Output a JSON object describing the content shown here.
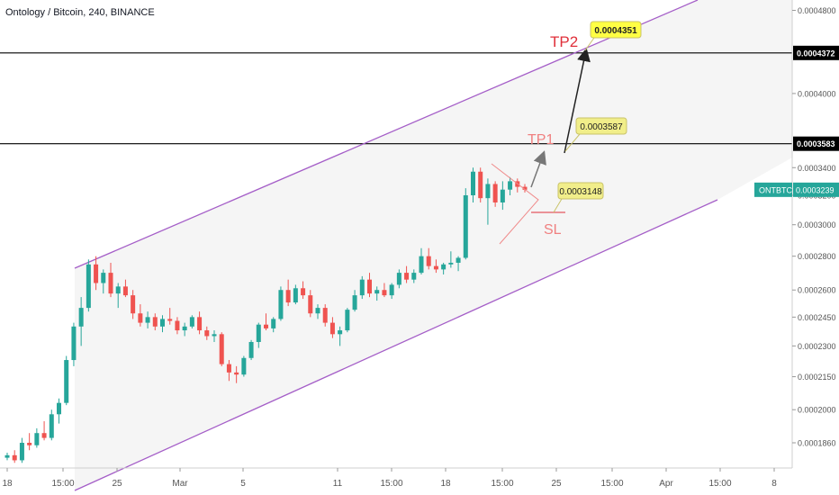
{
  "header": {
    "title": "Ontology / Bitcoin, 240, BINANCE"
  },
  "colors": {
    "up": "#26a69a",
    "down": "#ef5350",
    "channel": "#a55fc8",
    "channel_fill": "#f5f5f5",
    "triangle": "#f08a8a",
    "label_red": "#e0303a",
    "callout_fill": "#f1ee8a",
    "callout_fill_tp2": "#ffff44",
    "price_tag": "#26a69a",
    "axis_text": "#555555",
    "level_line": "#000000"
  },
  "chart_data": {
    "type": "candlestick",
    "symbol_tag": "ONTBTC",
    "current_price": "0.0003239",
    "y_scale": "log",
    "ylim": [
      0.000176,
      0.000491
    ],
    "y_ticks": [
      "0.0004800",
      "0.0004000",
      "0.0003400",
      "0.0003200",
      "0.0003000",
      "0.0002800",
      "0.0002600",
      "0.0002450",
      "0.0002300",
      "0.0002150",
      "0.0002000",
      "0.0001860"
    ],
    "x_ticks": [
      "18",
      "15:00",
      "25",
      "Mar",
      "5",
      "11",
      "15:00",
      "18",
      "15:00",
      "25",
      "15:00",
      "Apr",
      "15:00",
      "8"
    ],
    "levels": [
      "0.0004372",
      "0.0003583"
    ],
    "annotations": {
      "tp1": "TP1",
      "tp2": "TP2",
      "sl": "SL",
      "tp1_price": "0.0003587",
      "tp2_price": "0.0004351",
      "sl_price": "0.0003148"
    },
    "candles": [
      [
        0.00018,
        0.000182,
        0.000179,
        0.000181
      ],
      [
        0.000181,
        0.000183,
        0.000178,
        0.000179
      ],
      [
        0.000179,
        0.000188,
        0.000178,
        0.000186
      ],
      [
        0.000186,
        0.00019,
        0.000183,
        0.000185
      ],
      [
        0.000185,
        0.000192,
        0.000184,
        0.00019
      ],
      [
        0.00019,
        0.000195,
        0.000187,
        0.000188
      ],
      [
        0.000188,
        0.0002,
        0.000187,
        0.000198
      ],
      [
        0.000198,
        0.000205,
        0.000194,
        0.000203
      ],
      [
        0.000203,
        0.000225,
        0.000202,
        0.000223
      ],
      [
        0.000223,
        0.000242,
        0.00022,
        0.00024
      ],
      [
        0.00024,
        0.000256,
        0.00023,
        0.00025
      ],
      [
        0.00025,
        0.000278,
        0.000248,
        0.000275
      ],
      [
        0.000275,
        0.00028,
        0.00026,
        0.000264
      ],
      [
        0.000264,
        0.000272,
        0.000258,
        0.00027
      ],
      [
        0.00027,
        0.000276,
        0.000256,
        0.000258
      ],
      [
        0.000258,
        0.000264,
        0.00025,
        0.000262
      ],
      [
        0.000262,
        0.000266,
        0.000256,
        0.000257
      ],
      [
        0.000257,
        0.00026,
        0.000244,
        0.000247
      ],
      [
        0.000247,
        0.000252,
        0.00024,
        0.000242
      ],
      [
        0.000242,
        0.000248,
        0.000239,
        0.000245
      ],
      [
        0.000245,
        0.000247,
        0.000238,
        0.00024
      ],
      [
        0.00024,
        0.000246,
        0.000237,
        0.000244
      ],
      [
        0.000244,
        0.00025,
        0.000241,
        0.000243
      ],
      [
        0.000243,
        0.000245,
        0.000236,
        0.000238
      ],
      [
        0.000238,
        0.000242,
        0.000235,
        0.00024
      ],
      [
        0.00024,
        0.000246,
        0.000239,
        0.000245
      ],
      [
        0.000245,
        0.000248,
        0.000236,
        0.000238
      ],
      [
        0.000238,
        0.00024,
        0.000233,
        0.000235
      ],
      [
        0.000235,
        0.000238,
        0.000232,
        0.000236
      ],
      [
        0.000236,
        0.000237,
        0.00022,
        0.000221
      ],
      [
        0.000221,
        0.000223,
        0.000213,
        0.000217
      ],
      [
        0.000217,
        0.00022,
        0.000212,
        0.000216
      ],
      [
        0.000216,
        0.000225,
        0.000215,
        0.000224
      ],
      [
        0.000224,
        0.000233,
        0.000223,
        0.000232
      ],
      [
        0.000232,
        0.000242,
        0.000229,
        0.000241
      ],
      [
        0.000241,
        0.000247,
        0.000238,
        0.000239
      ],
      [
        0.000239,
        0.000245,
        0.000237,
        0.000244
      ],
      [
        0.000244,
        0.000262,
        0.000243,
        0.00026
      ],
      [
        0.00026,
        0.000266,
        0.000251,
        0.000253
      ],
      [
        0.000253,
        0.000263,
        0.000252,
        0.000261
      ],
      [
        0.000261,
        0.000265,
        0.000255,
        0.000257
      ],
      [
        0.000257,
        0.00026,
        0.000245,
        0.000247
      ],
      [
        0.000247,
        0.000252,
        0.000244,
        0.00025
      ],
      [
        0.00025,
        0.000252,
        0.00024,
        0.000242
      ],
      [
        0.000242,
        0.000245,
        0.000234,
        0.000236
      ],
      [
        0.000236,
        0.00024,
        0.00023,
        0.000238
      ],
      [
        0.000238,
        0.00025,
        0.000237,
        0.000249
      ],
      [
        0.000249,
        0.00026,
        0.000248,
        0.000257
      ],
      [
        0.000257,
        0.000268,
        0.000255,
        0.000266
      ],
      [
        0.000266,
        0.00027,
        0.000256,
        0.000258
      ],
      [
        0.000258,
        0.000262,
        0.000254,
        0.00026
      ],
      [
        0.00026,
        0.000264,
        0.000256,
        0.000257
      ],
      [
        0.000257,
        0.000264,
        0.000255,
        0.000263
      ],
      [
        0.000263,
        0.000272,
        0.000261,
        0.00027
      ],
      [
        0.00027,
        0.000274,
        0.000264,
        0.000266
      ],
      [
        0.000266,
        0.000272,
        0.000264,
        0.00027
      ],
      [
        0.00027,
        0.000285,
        0.000269,
        0.00028
      ],
      [
        0.00028,
        0.000285,
        0.000272,
        0.000274
      ],
      [
        0.000274,
        0.000278,
        0.00027,
        0.000272
      ],
      [
        0.000272,
        0.000276,
        0.000269,
        0.000275
      ],
      [
        0.000275,
        0.000283,
        0.000273,
        0.000276
      ],
      [
        0.000276,
        0.00028,
        0.000271,
        0.000279
      ],
      [
        0.000279,
        0.000325,
        0.000278,
        0.00032
      ],
      [
        0.00032,
        0.00034,
        0.000315,
        0.000337
      ],
      [
        0.000337,
        0.00034,
        0.000315,
        0.000318
      ],
      [
        0.000318,
        0.000332,
        0.0003,
        0.000328
      ],
      [
        0.000328,
        0.00033,
        0.000312,
        0.000315
      ],
      [
        0.000315,
        0.00033,
        0.00031,
        0.000324
      ],
      [
        0.000324,
        0.000333,
        0.00032,
        0.00033
      ],
      [
        0.00033,
        0.000332,
        0.000322,
        0.000326
      ],
      [
        0.000326,
        0.000328,
        0.000322,
        0.0003239
      ]
    ]
  }
}
